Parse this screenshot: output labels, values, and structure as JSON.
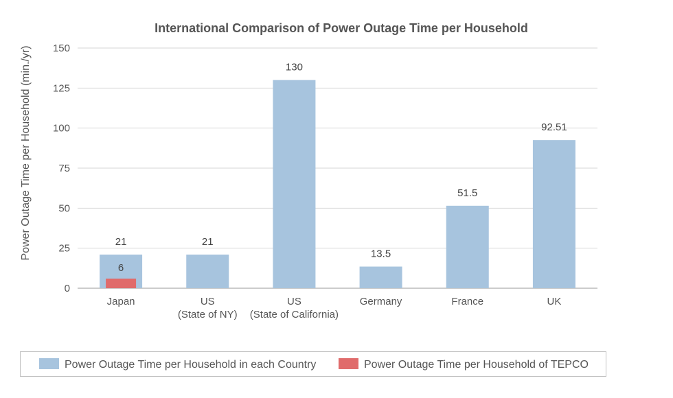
{
  "chart_data": {
    "type": "bar",
    "title": "International Comparison of Power Outage Time per Household",
    "ylabel": "Power Outage Time per Household (min./yr)",
    "xlabel": "",
    "ylim": [
      0,
      150
    ],
    "yticks": [
      0,
      25,
      50,
      75,
      100,
      125,
      150
    ],
    "grid": true,
    "legend_position": "bottom",
    "categories": [
      [
        "Japan"
      ],
      [
        "US",
        "(State of NY)"
      ],
      [
        "US",
        "(State of California)"
      ],
      [
        "Germany"
      ],
      [
        "France"
      ],
      [
        "UK"
      ]
    ],
    "series": [
      {
        "name": "Power Outage Time per Household in each Country",
        "color": "#a7c4de",
        "values": [
          21,
          21,
          130,
          13.5,
          51.5,
          92.51
        ],
        "labels": [
          "21",
          "21",
          "130",
          "13.5",
          "51.5",
          "92.51"
        ]
      },
      {
        "name": "Power Outage Time per Household of TEPCO",
        "color": "#e06b6b",
        "values": [
          6,
          null,
          null,
          null,
          null,
          null
        ],
        "labels": [
          "6",
          "",
          "",
          "",
          "",
          ""
        ]
      }
    ]
  }
}
